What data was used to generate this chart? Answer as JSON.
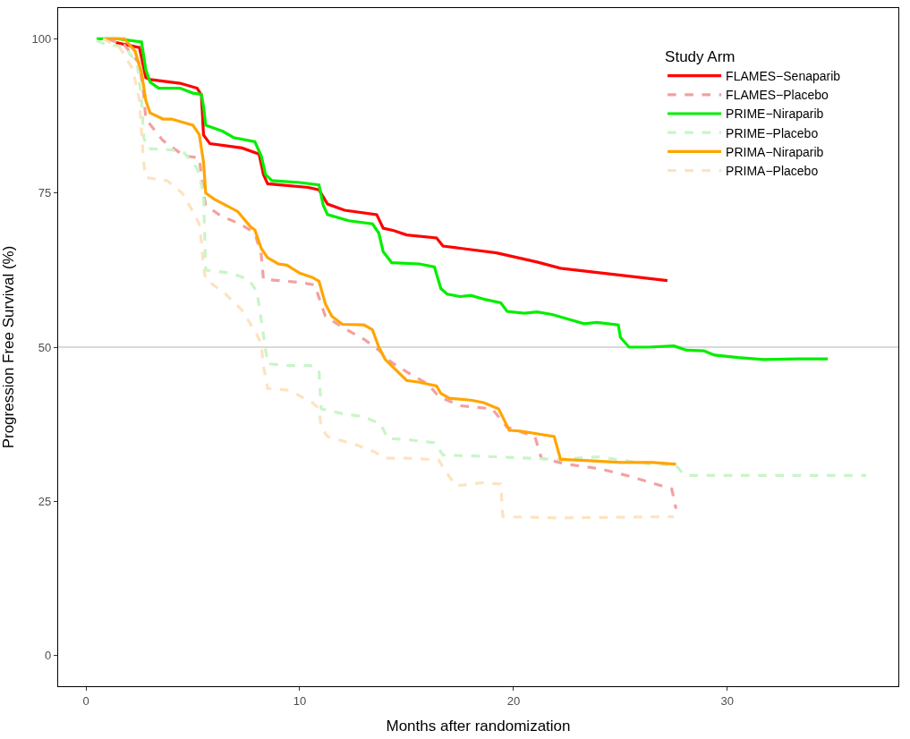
{
  "chart_data": {
    "type": "line",
    "xlabel": "Months after randomization",
    "ylabel": "Progression Free Survival (%)",
    "legend_title": "Study Arm",
    "legend": "top right",
    "grid": false,
    "xlim": [
      -1.3,
      38
    ],
    "xticks": [
      0,
      10,
      20,
      30
    ],
    "ylim": [
      -5,
      105
    ],
    "yticks": [
      0,
      25,
      50,
      75,
      100
    ],
    "ref_lines": [
      {
        "axis": "y",
        "value": 50,
        "color": "#b3b3b3",
        "line_style": "solid"
      }
    ],
    "series": [
      {
        "name": "FLAMES−Senaparib",
        "color": "#ff0000",
        "line_style": "solid",
        "x": [
          1.4,
          2.5,
          2.8,
          3.0,
          4.4,
          5.2,
          5.4,
          5.5,
          5.8,
          7.3,
          8.1,
          8.3,
          8.5,
          10.4,
          10.9,
          11.3,
          12.1,
          13.6,
          13.9,
          14.4,
          15.0,
          16.4,
          16.7,
          17.6,
          19.2,
          21.1,
          22.2,
          27.2
        ],
        "values": [
          99.4,
          98.6,
          93.7,
          93.4,
          92.8,
          92,
          90.9,
          84.4,
          83,
          82.3,
          81.3,
          78,
          76.5,
          75.9,
          75.5,
          73.2,
          72.2,
          71.5,
          69.3,
          68.9,
          68.2,
          67.7,
          66.4,
          66,
          65.3,
          63.8,
          62.8,
          60.8
        ]
      },
      {
        "name": "FLAMES−Placebo",
        "color": "#f4a0a0",
        "line_style": "dashed",
        "x": [
          1.0,
          1.8,
          2.5,
          2.7,
          2.8,
          3.6,
          4.6,
          5.3,
          5.5,
          5.6,
          6.3,
          7.2,
          7.9,
          8.2,
          8.3,
          9.0,
          10.0,
          10.7,
          11.0,
          11.2,
          12.1,
          13.0,
          13.7,
          14.3,
          15.0,
          16.0,
          16.5,
          17.5,
          19.0,
          19.7,
          21.0,
          21.3,
          22.5,
          24.0,
          25.5,
          27.4,
          27.6
        ],
        "values": [
          100,
          99,
          96,
          91,
          87,
          83.5,
          81,
          80.7,
          75,
          73,
          71.3,
          70,
          68.5,
          65,
          61,
          60.8,
          60.5,
          60.1,
          57,
          55,
          53,
          51.3,
          49.5,
          47.5,
          46,
          44,
          42,
          40.5,
          40,
          37,
          35.5,
          32,
          31,
          30.3,
          29,
          27,
          23.8
        ]
      },
      {
        "name": "PRIME−Niraparib",
        "color": "#00ee00",
        "line_style": "solid",
        "x": [
          0.5,
          1.5,
          2.6,
          2.8,
          3.0,
          3.4,
          4.4,
          5.0,
          5.4,
          5.5,
          5.6,
          6.4,
          6.9,
          7.9,
          8.2,
          8.4,
          8.7,
          10.0,
          10.9,
          11.1,
          11.3,
          12.3,
          13.4,
          13.7,
          13.9,
          14.3,
          15.6,
          16.3,
          16.6,
          16.9,
          17.5,
          18.0,
          18.7,
          19.4,
          19.7,
          20.5,
          21.1,
          21.8,
          22.6,
          23.3,
          23.9,
          24.9,
          25.0,
          25.4,
          26.3,
          27.5,
          28.1,
          28.9,
          29.4,
          30.5,
          31.7,
          33.3,
          34.7
        ],
        "values": [
          100,
          100,
          99.5,
          95,
          93,
          92,
          92,
          91.2,
          91,
          89,
          86,
          85,
          84,
          83.3,
          81,
          78,
          77,
          76.7,
          76.3,
          73,
          71.5,
          70.5,
          70,
          68.5,
          65.5,
          63.7,
          63.5,
          63,
          59.5,
          58.6,
          58.2,
          58.4,
          57.7,
          57.2,
          55.8,
          55.5,
          55.7,
          55.3,
          54.5,
          53.8,
          54,
          53.6,
          51.6,
          50,
          50,
          50.2,
          49.5,
          49.4,
          48.7,
          48.3,
          48,
          48.1,
          48.1
        ]
      },
      {
        "name": "PRIME−Placebo",
        "color": "#c8f5c8",
        "line_style": "dashed",
        "x": [
          0.5,
          1.0,
          1.8,
          2.4,
          2.6,
          2.7,
          2.9,
          4.0,
          4.6,
          5.2,
          5.5,
          5.6,
          6.8,
          7.6,
          8.0,
          8.3,
          8.5,
          9.5,
          10.5,
          10.9,
          11.0,
          12.0,
          13.0,
          13.8,
          14.1,
          15.0,
          16.3,
          16.7,
          18.5,
          20.0,
          22.0,
          24.0,
          26.0,
          27.6,
          28.0,
          32.0,
          36.5
        ],
        "values": [
          99.7,
          99,
          98.8,
          96,
          90,
          84,
          82.2,
          82,
          81.5,
          79,
          75,
          62.5,
          62,
          61,
          59,
          52,
          47.3,
          47,
          47,
          46.3,
          40,
          39.2,
          38.7,
          37.5,
          35.2,
          35,
          34.5,
          32.5,
          32.3,
          32.1,
          31.8,
          32.2,
          31.2,
          30.8,
          29.2,
          29.2,
          29.2
        ]
      },
      {
        "name": "PRIMA−Niraparib",
        "color": "#ffa500",
        "line_style": "solid",
        "x": [
          0.8,
          1.8,
          2.3,
          2.6,
          2.8,
          3.0,
          3.6,
          4.0,
          5.0,
          5.3,
          5.5,
          5.6,
          6.0,
          7.1,
          7.7,
          7.9,
          8.2,
          8.5,
          9.0,
          9.4,
          10.0,
          10.6,
          10.9,
          11.2,
          11.5,
          12.0,
          13.0,
          13.4,
          13.7,
          14.0,
          15.0,
          15.6,
          16.4,
          16.6,
          17.0,
          18.0,
          18.6,
          19.3,
          19.8,
          20.3,
          21.9,
          22.2,
          23.5,
          25.0,
          26.5,
          27.6
        ],
        "values": [
          100,
          100,
          98,
          94.5,
          90,
          88,
          87,
          87,
          86,
          84.5,
          80,
          75,
          74,
          72,
          69.5,
          69,
          66,
          64.5,
          63.5,
          63.3,
          62,
          61.3,
          60.7,
          57,
          55,
          53.7,
          53.6,
          52.8,
          50,
          48,
          44.6,
          44.3,
          43.7,
          42.5,
          41.7,
          41.4,
          41,
          40,
          36.5,
          36.4,
          35.5,
          31.8,
          31.6,
          31.3,
          31.3,
          31
        ]
      },
      {
        "name": "PRIMA−Placebo",
        "color": "#fde3c0",
        "line_style": "dashed",
        "x": [
          0.8,
          1.6,
          2.2,
          2.5,
          2.6,
          2.7,
          2.8,
          3.8,
          4.5,
          5.0,
          5.3,
          5.4,
          5.5,
          5.6,
          6.5,
          7.3,
          8.0,
          8.2,
          8.3,
          8.5,
          9.5,
          10.6,
          10.9,
          11.0,
          11.3,
          12.6,
          13.5,
          14.0,
          15.0,
          16.5,
          16.8,
          17.3,
          18.5,
          19.4,
          19.5,
          22.0,
          27.5
        ],
        "values": [
          100,
          98.5,
          95,
          90,
          85,
          80,
          77.5,
          77,
          75,
          72,
          70,
          67,
          63,
          61,
          58.7,
          56,
          52,
          50.5,
          47,
          43.3,
          43,
          41,
          40,
          37,
          35.5,
          34.2,
          33,
          32,
          32,
          31.7,
          30,
          27.5,
          28,
          27.8,
          22.5,
          22.3,
          22.5
        ]
      }
    ]
  }
}
